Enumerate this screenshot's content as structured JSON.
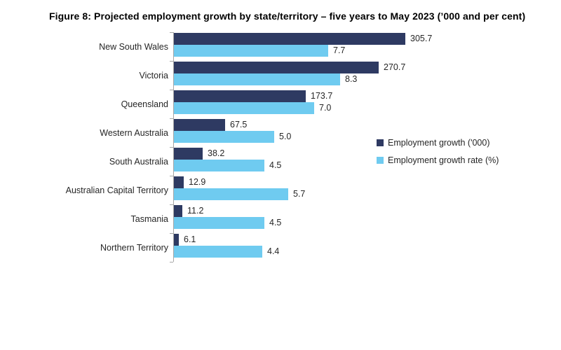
{
  "chart_data": {
    "type": "bar",
    "orientation": "horizontal",
    "title": "Figure 8: Projected employment growth by state/territory – five years to May 2023 (’000 and per cent)",
    "categories": [
      "New South Wales",
      "Victoria",
      "Queensland",
      "Western Australia",
      "South Australia",
      "Australian Capital Territory",
      "Tasmania",
      "Northern Territory"
    ],
    "series": [
      {
        "name": "Employment growth ('000)",
        "unit": "'000",
        "color": "#2E3A62",
        "values": [
          305.7,
          270.7,
          173.7,
          67.5,
          38.2,
          12.9,
          11.2,
          6.1
        ]
      },
      {
        "name": "Employment growth rate (%)",
        "unit": "%",
        "color": "#6FCBF0",
        "values": [
          7.7,
          8.3,
          7.0,
          5.0,
          4.5,
          5.7,
          4.5,
          4.4
        ]
      }
    ],
    "data_labels": true,
    "grid": false,
    "x_axis_labels_shown": false,
    "legend_position": "middle-right",
    "axis_color": "#A6A6A6"
  }
}
